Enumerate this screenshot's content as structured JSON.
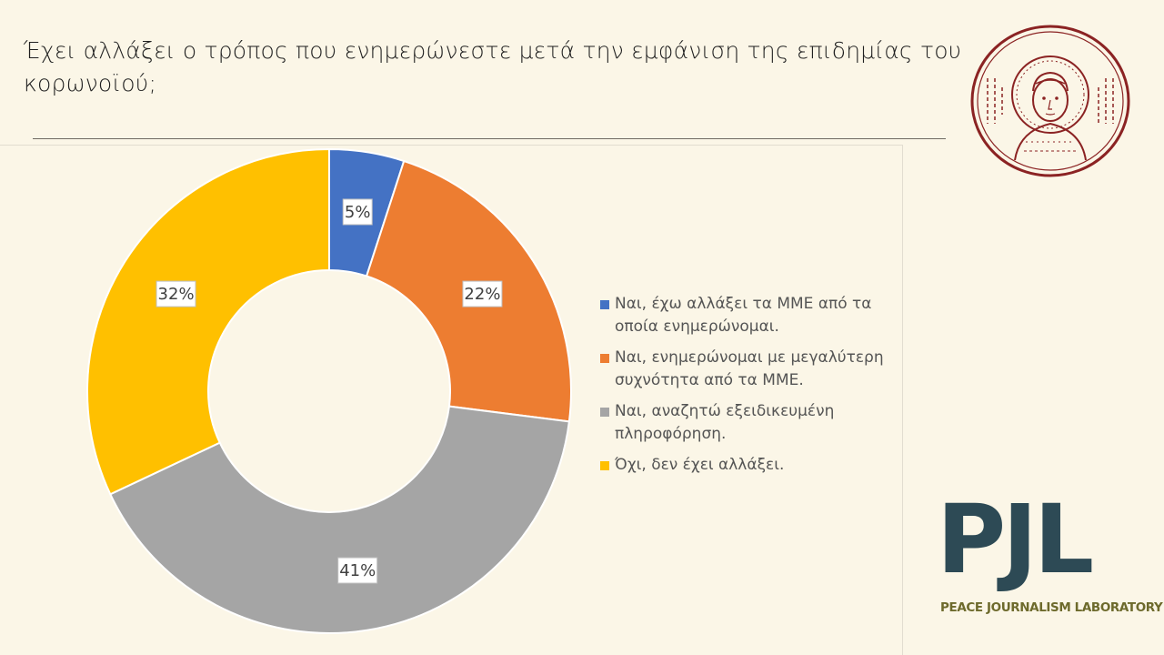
{
  "slide": {
    "title": "Έχει αλλάξει ο τρόπος που ενημερώνεστε μετά την εμφάνιση της επιδημίας του κορωνοϊού;"
  },
  "chart_data": {
    "type": "pie",
    "donut": true,
    "title": "",
    "categories": [
      "Ναι, έχω αλλάξει τα ΜΜΕ από τα οποία ενημερώνομαι.",
      "Ναι, ενημερώνομαι με μεγαλύτερη συχνότητα από τα ΜΜΕ.",
      "Ναι, αναζητώ εξειδικευμένη πληροφόρηση.",
      "Όχι, δεν έχει αλλάξει."
    ],
    "values": [
      5,
      22,
      41,
      32
    ],
    "labels": [
      "5%",
      "22%",
      "41%",
      "32%"
    ],
    "colors": [
      "#4472c4",
      "#ed7d31",
      "#a5a5a5",
      "#ffc000"
    ],
    "legend_position": "right"
  },
  "branding": {
    "pjl_letters": "PJL",
    "pjl_name": "PEACE JOURNALISM LABORATORY",
    "seal_icon": "aristotle-university-seal-icon"
  }
}
